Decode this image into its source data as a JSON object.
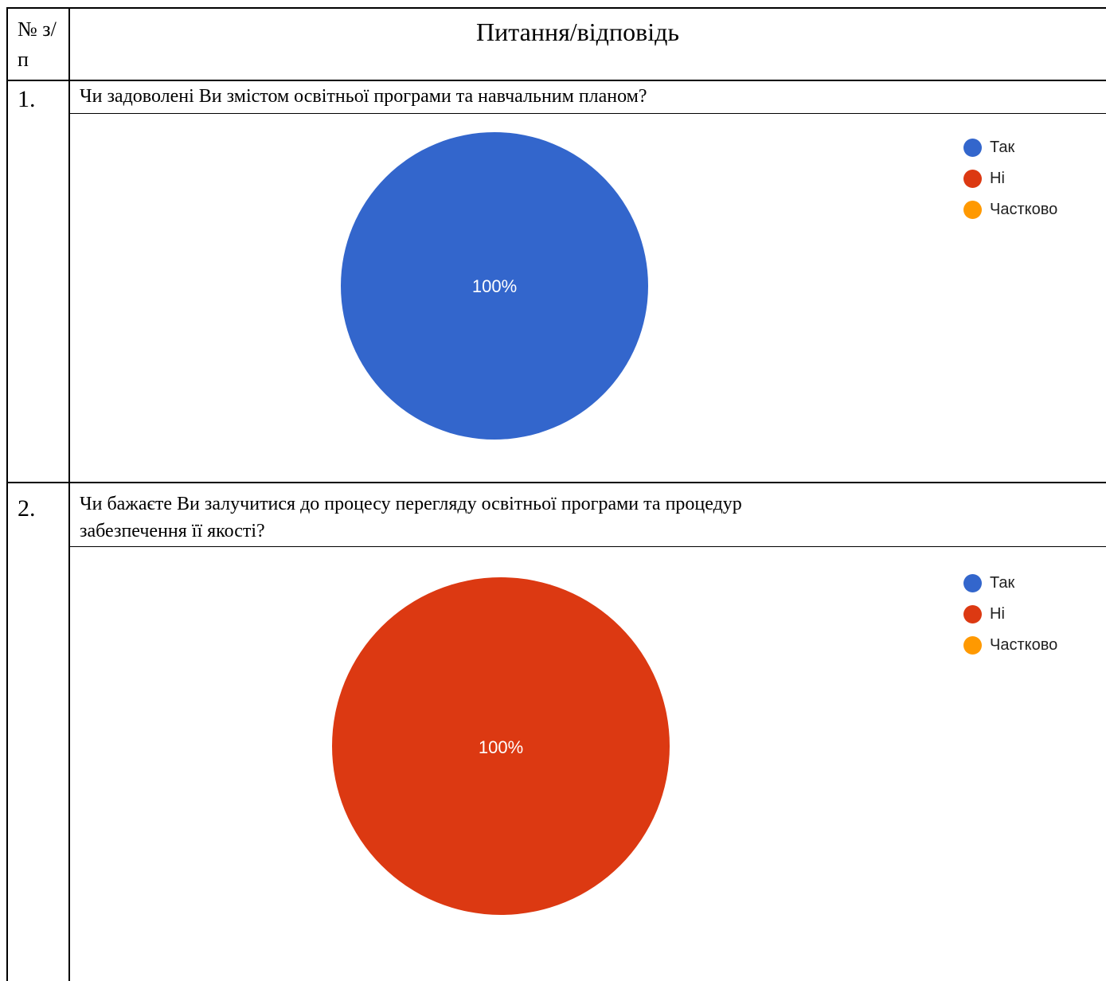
{
  "header": {
    "number_col": "№ з/п",
    "title_col": "Питання/відповідь"
  },
  "rows": [
    {
      "number": "1.",
      "question": "Чи задоволені Ви змістом освітньої програми та навчальним планом?",
      "chart_pct_label": "100%"
    },
    {
      "number": "2.",
      "question_line1": "Чи бажаєте Ви залучитися до процесу перегляду освітньої програми та процедур",
      "question_line2": "забезпечення її якості?",
      "chart_pct_label": "100%"
    }
  ],
  "legend": [
    {
      "label": "Так",
      "color": "#3366cc"
    },
    {
      "label": "Ні",
      "color": "#dc3912"
    },
    {
      "label": "Частково",
      "color": "#ff9900"
    }
  ],
  "chart_data": [
    {
      "type": "pie",
      "categories": [
        "Так",
        "Ні",
        "Частково"
      ],
      "values": [
        100,
        0,
        0
      ],
      "colors": [
        "#3366cc",
        "#dc3912",
        "#ff9900"
      ],
      "legend": "right"
    },
    {
      "type": "pie",
      "categories": [
        "Так",
        "Ні",
        "Частково"
      ],
      "values": [
        0,
        100,
        0
      ],
      "colors": [
        "#3366cc",
        "#dc3912",
        "#ff9900"
      ],
      "legend": "right"
    }
  ]
}
